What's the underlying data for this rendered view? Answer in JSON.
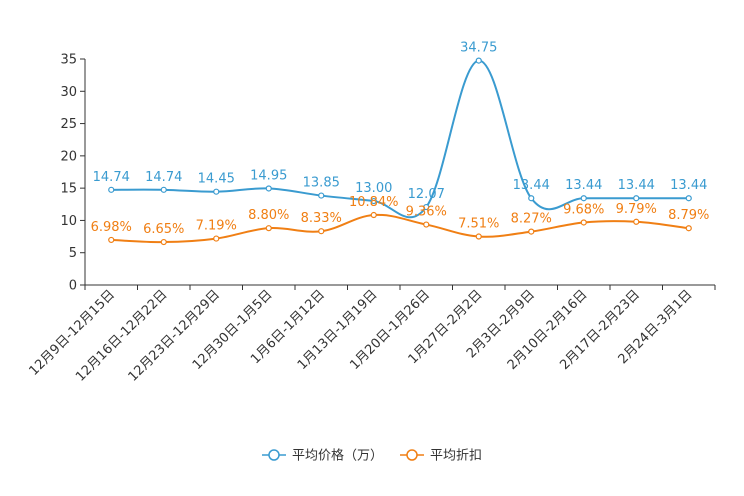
{
  "chart_data": {
    "type": "line",
    "title": "",
    "xlabel": "",
    "ylabel": "",
    "ylim": [
      0,
      35
    ],
    "y_ticks": [
      0,
      5,
      10,
      15,
      20,
      25,
      30,
      35
    ],
    "grid": false,
    "legend_position": "bottom-center",
    "categories": [
      "12月9日-12月15日",
      "12月16日-12月22日",
      "12月23日-12月29日",
      "12月30日-1月5日",
      "1月6日-1月12日",
      "1月13日-1月19日",
      "1月20日-1月26日",
      "1月27日-2月2日",
      "2月3日-2月9日",
      "2月10日-2月16日",
      "2月17日-2月23日",
      "2月24日-3月1日"
    ],
    "series": [
      {
        "name": "平均价格（万）",
        "color": "#3a9bd0",
        "values": [
          14.74,
          14.74,
          14.45,
          14.95,
          13.85,
          13.0,
          12.07,
          34.75,
          13.44,
          13.44,
          13.44,
          13.44
        ],
        "labels": [
          "14.74",
          "14.74",
          "14.45",
          "14.95",
          "13.85",
          "13.00",
          "12.07",
          "34.75",
          "13.44",
          "13.44",
          "13.44",
          "13.44"
        ]
      },
      {
        "name": "平均折扣",
        "color": "#f07f14",
        "values": [
          6.98,
          6.65,
          7.19,
          8.8,
          8.33,
          10.84,
          9.36,
          7.51,
          8.27,
          9.68,
          9.79,
          8.79
        ],
        "labels": [
          "6.98%",
          "6.65%",
          "7.19%",
          "8.80%",
          "8.33%",
          "10.84%",
          "9.36%",
          "7.51%",
          "8.27%",
          "9.68%",
          "9.79%",
          "8.79%"
        ]
      }
    ]
  }
}
